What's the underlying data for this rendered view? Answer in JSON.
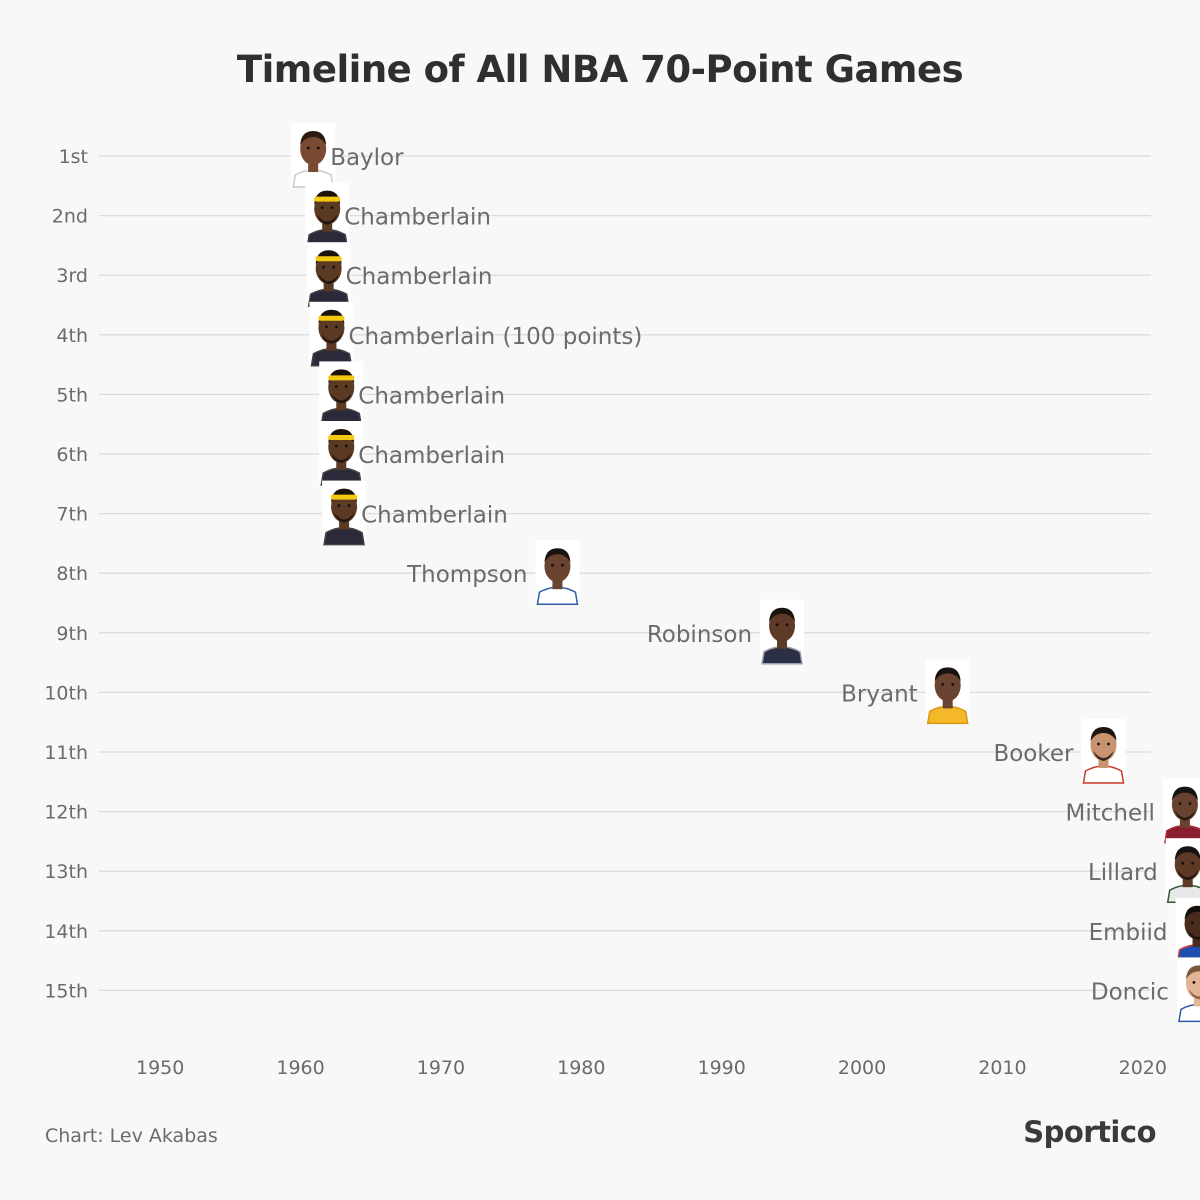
{
  "chart_data": {
    "type": "scatter",
    "title": "Timeline of All NBA 70-Point Games",
    "xlabel": "",
    "ylabel": "",
    "xlim": [
      1945,
      2025.5
    ],
    "x_ticks": [
      1950,
      1960,
      1970,
      1980,
      1990,
      2000,
      2010,
      2020
    ],
    "grid": true,
    "categories": [
      "1st",
      "2nd",
      "3rd",
      "4th",
      "5th",
      "6th",
      "7th",
      "8th",
      "9th",
      "10th",
      "11th",
      "12th",
      "13th",
      "14th",
      "15th"
    ],
    "points": [
      {
        "rank": "1st",
        "player": "Baylor",
        "year": 1960.9,
        "label_side": "right",
        "icon": "baylor-portrait"
      },
      {
        "rank": "2nd",
        "player": "Chamberlain",
        "year": 1961.9,
        "label_side": "right",
        "icon": "chamberlain-portrait"
      },
      {
        "rank": "3rd",
        "player": "Chamberlain",
        "year": 1962.0,
        "label_side": "right",
        "icon": "chamberlain-portrait"
      },
      {
        "rank": "4th",
        "player": "Chamberlain (100 points)",
        "year": 1962.2,
        "label_side": "right",
        "icon": "chamberlain-portrait"
      },
      {
        "rank": "5th",
        "player": "Chamberlain",
        "year": 1962.9,
        "label_side": "right",
        "icon": "chamberlain-portrait"
      },
      {
        "rank": "6th",
        "player": "Chamberlain",
        "year": 1962.9,
        "label_side": "right",
        "icon": "chamberlain-portrait"
      },
      {
        "rank": "7th",
        "player": "Chamberlain",
        "year": 1963.1,
        "label_side": "right",
        "icon": "chamberlain-portrait"
      },
      {
        "rank": "8th",
        "player": "Thompson",
        "year": 1978.3,
        "label_side": "left",
        "icon": "thompson-portrait"
      },
      {
        "rank": "9th",
        "player": "Robinson",
        "year": 1994.3,
        "label_side": "left",
        "icon": "robinson-portrait"
      },
      {
        "rank": "10th",
        "player": "Bryant",
        "year": 2006.1,
        "label_side": "left",
        "icon": "bryant-portrait"
      },
      {
        "rank": "11th",
        "player": "Booker",
        "year": 2017.2,
        "label_side": "left",
        "icon": "booker-portrait"
      },
      {
        "rank": "12th",
        "player": "Mitchell",
        "year": 2023.0,
        "label_side": "left",
        "icon": "mitchell-portrait"
      },
      {
        "rank": "13th",
        "player": "Lillard",
        "year": 2023.2,
        "label_side": "left",
        "icon": "lillard-portrait"
      },
      {
        "rank": "14th",
        "player": "Embiid",
        "year": 2023.9,
        "label_side": "left",
        "icon": "embiid-portrait"
      },
      {
        "rank": "15th",
        "player": "Doncic",
        "year": 2024.0,
        "label_side": "left",
        "icon": "doncic-portrait"
      }
    ]
  },
  "footer": {
    "credit": "Chart: Lev Akabas",
    "brand": "Sportico"
  },
  "colors": {
    "background": "#f8f8f8",
    "gridline": "#dcdcdc",
    "text": "#6b6b6b",
    "title": "#2f2f2f"
  }
}
